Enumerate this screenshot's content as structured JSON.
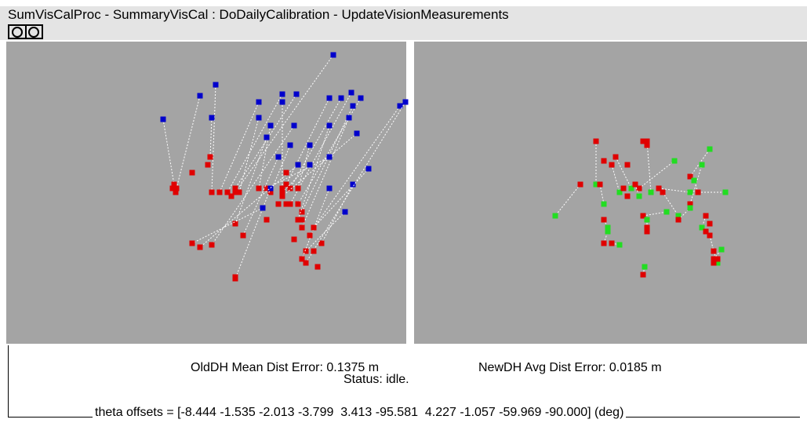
{
  "window": {
    "title": "SumVisCalProc - SummaryVisCal : DoDailyCalibration - UpdateVisionMeasurements"
  },
  "status": {
    "old_error": "OldDH Mean Dist Error: 0.1375 m",
    "new_error": "NewDH Avg Dist Error: 0.0185 m",
    "status": "Status: idle.",
    "theta": "theta offsets = [-8.444 -1.535 -2.013 -3.799  3.413 -95.581  4.227 -1.057 -59.969 -90.000] (deg)"
  }
}
